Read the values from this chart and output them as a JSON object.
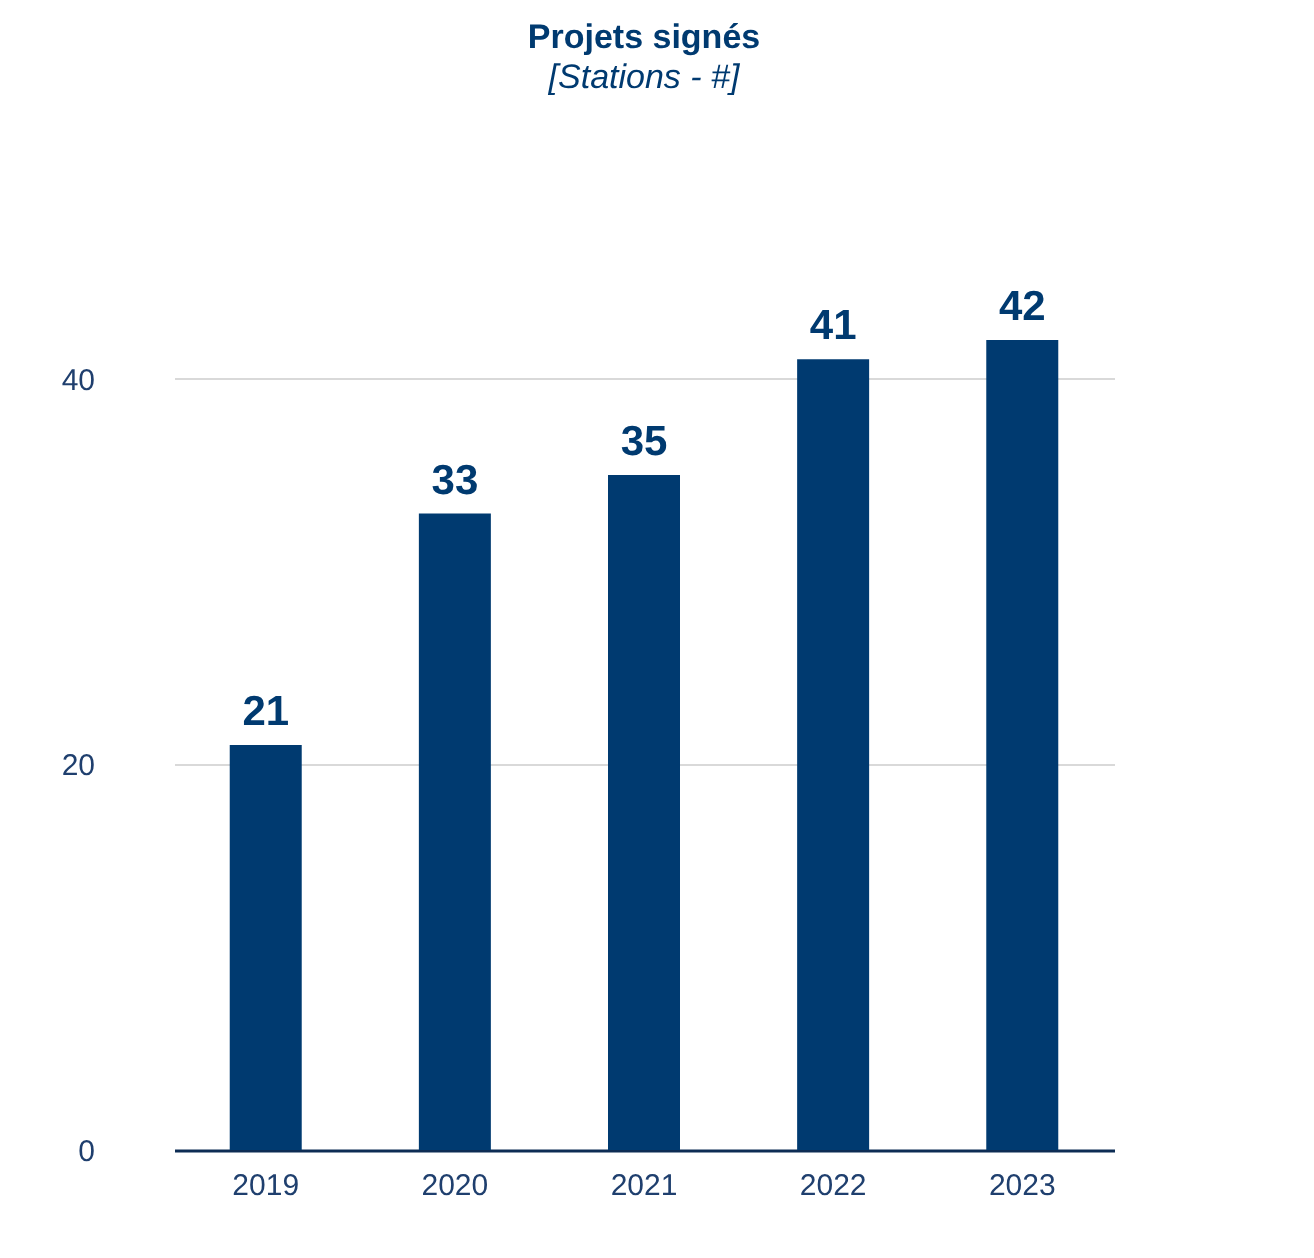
{
  "chart_data": {
    "type": "bar",
    "title": "Projets signés",
    "subtitle": "[Stations - #]",
    "categories": [
      "2019",
      "2020",
      "2021",
      "2022",
      "2023"
    ],
    "values": [
      21,
      33,
      35,
      41,
      42
    ],
    "color": "#003a70",
    "ylim": [
      0,
      42
    ],
    "yticks": [
      0,
      20,
      40
    ],
    "grid": "y",
    "data_labels": true
  }
}
